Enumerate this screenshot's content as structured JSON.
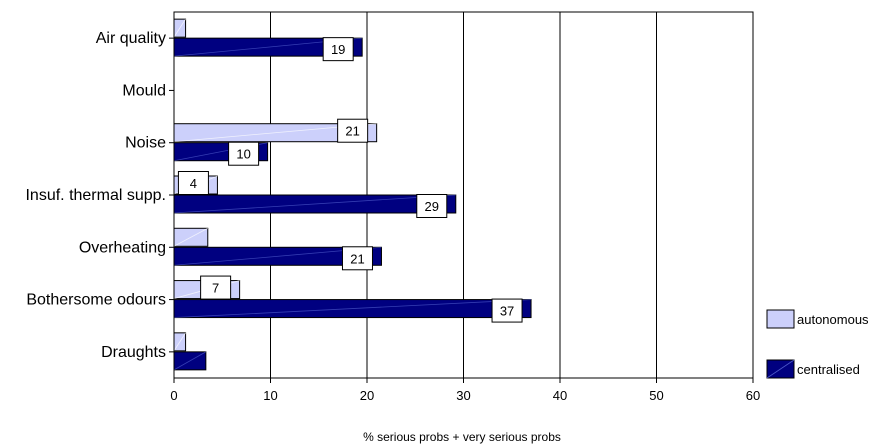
{
  "chart_data": {
    "type": "bar",
    "orientation": "horizontal",
    "categories": [
      "Air quality",
      "Mould",
      "Noise",
      "Insuf. thermal supp.",
      "Overheating",
      "Bothersome odours",
      "Draughts"
    ],
    "series": [
      {
        "name": "autonomous",
        "values": [
          1.2,
          0,
          21,
          4.5,
          3.5,
          6.8,
          1.2
        ],
        "labels": [
          "",
          "",
          "21",
          "4",
          "",
          "7",
          ""
        ]
      },
      {
        "name": "centralised",
        "values": [
          19.5,
          0,
          9.7,
          29.2,
          21.5,
          37,
          3.3
        ],
        "labels": [
          "19",
          "",
          "10",
          "29",
          "21",
          "37",
          ""
        ]
      }
    ],
    "xlabel": "% serious probs + very serious probs",
    "xlim": [
      0,
      60
    ],
    "xticks": [
      "0",
      "10",
      "20",
      "30",
      "40",
      "50",
      "60"
    ],
    "grid": "vertical",
    "legend": "right",
    "colors": {
      "autonomous": "#ccd0fb",
      "centralised": "#000080"
    }
  }
}
